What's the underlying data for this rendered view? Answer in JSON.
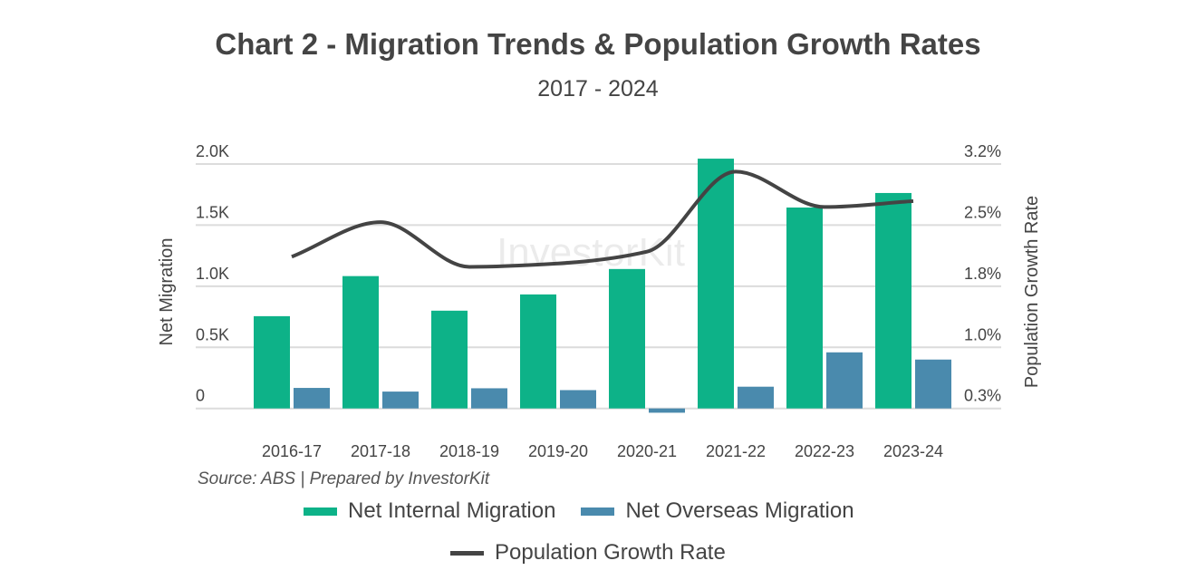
{
  "chart_data": {
    "type": "bar",
    "title": "Chart 2 - Migration Trends & Population Growth Rates",
    "subtitle": "2017 - 2024",
    "source": "Source: ABS | Prepared by InvestorKit",
    "watermark": "InvestorKit",
    "categories": [
      "2016-17",
      "2017-18",
      "2018-19",
      "2019-20",
      "2020-21",
      "2021-22",
      "2022-23",
      "2023-24"
    ],
    "ylabel": "Net Migration",
    "y2label": "Population Growth Rate",
    "ylim": [
      0,
      2000
    ],
    "y2lim": [
      0.3,
      3.2
    ],
    "yticks": [
      "0",
      "0.5K",
      "1.0K",
      "1.5K",
      "2.0K"
    ],
    "y2ticks": [
      "0.3%",
      "1.0%",
      "1.8%",
      "2.5%",
      "3.2%"
    ],
    "grid": true,
    "legend_position": "bottom",
    "series": [
      {
        "name": "Net Internal Migration",
        "type": "bar",
        "axis": "left",
        "color": "#0db288",
        "values": [
          755,
          1083,
          800,
          933,
          1141,
          2044,
          1644,
          1763
        ]
      },
      {
        "name": "Net Overseas Migration",
        "type": "bar",
        "axis": "left",
        "color": "#4a8aad",
        "values": [
          168,
          138,
          165,
          150,
          -35,
          178,
          459,
          400
        ]
      },
      {
        "name": "Population Growth Rate",
        "type": "line",
        "axis": "right",
        "color": "#444444",
        "values": [
          2.1,
          2.51,
          1.98,
          2.02,
          2.16,
          3.11,
          2.69,
          2.76
        ]
      }
    ]
  }
}
